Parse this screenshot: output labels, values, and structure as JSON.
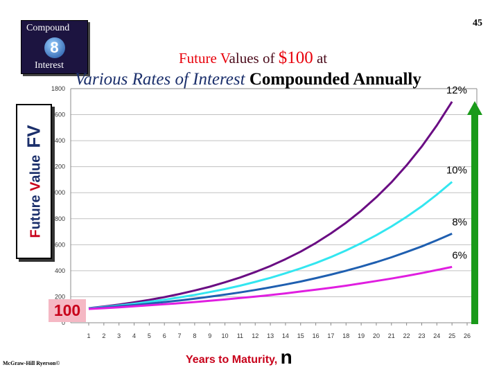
{
  "badge": {
    "top": "Compound",
    "number": "8",
    "bottom": "Interest"
  },
  "page_number": "45",
  "title_line1": {
    "prefix": "Future ",
    "v": "V",
    "mid": "alues of ",
    "amount": "$100",
    "suffix": " at"
  },
  "title_line2": {
    "italic": "Various Rates of Interest",
    "bold": " Compounded Annually"
  },
  "y_axis_label": {
    "f": "F",
    "uture": "uture ",
    "v": "V",
    "alue": "alue",
    "abbr": "FV"
  },
  "x_axis_label": {
    "text": "Years to Maturity, ",
    "n": "n"
  },
  "principal_callout": "100",
  "credit": "McGraw-Hill Ryerson©",
  "colors": {
    "r12": "#6a0d83",
    "r10": "#33e6f0",
    "r8": "#1f5fb0",
    "r6": "#e01ee0",
    "arrow": "#1a9a1a",
    "accent": "#e8000b"
  },
  "chart_data": {
    "type": "line",
    "title": "Future Values of $100 at Various Rates of Interest Compounded Annually",
    "xlabel": "Years to Maturity, n",
    "ylabel": "Future Value FV",
    "xlim": [
      1,
      26
    ],
    "ylim": [
      0,
      1800
    ],
    "y_ticks": [
      {
        "value": 0,
        "label": "0"
      },
      {
        "value": 200,
        "label": "200"
      },
      {
        "value": 400,
        "label": "400"
      },
      {
        "value": 600,
        "label": "600"
      },
      {
        "value": 800,
        "label": "800"
      },
      {
        "value": 1000,
        "label": "1000"
      },
      {
        "value": 1200,
        "label": "1200"
      },
      {
        "value": 1400,
        "label": "1400"
      },
      {
        "value": 1600,
        "label": "1600"
      },
      {
        "value": 1800,
        "label": "1800"
      }
    ],
    "x_ticks": [
      "1",
      "2",
      "3",
      "4",
      "5",
      "6",
      "7",
      "8",
      "9",
      "10",
      "11",
      "12",
      "13",
      "14",
      "15",
      "16",
      "17",
      "18",
      "19",
      "20",
      "21",
      "22",
      "23",
      "24",
      "25",
      "26"
    ],
    "grid": true,
    "series": [
      {
        "name": "12%",
        "x": [
          1,
          2,
          3,
          4,
          5,
          6,
          7,
          8,
          9,
          10,
          11,
          12,
          13,
          14,
          15,
          16,
          17,
          18,
          19,
          20,
          21,
          22,
          23,
          24,
          25
        ],
        "values": [
          112,
          125,
          140,
          157,
          176,
          197,
          221,
          248,
          277,
          311,
          348,
          390,
          436,
          489,
          547,
          613,
          687,
          769,
          861,
          965,
          1080,
          1210,
          1355,
          1518,
          1700
        ]
      },
      {
        "name": "10%",
        "x": [
          1,
          2,
          3,
          4,
          5,
          6,
          7,
          8,
          9,
          10,
          11,
          12,
          13,
          14,
          15,
          16,
          17,
          18,
          19,
          20,
          21,
          22,
          23,
          24,
          25
        ],
        "values": [
          110,
          121,
          133,
          146,
          161,
          177,
          195,
          214,
          236,
          259,
          285,
          314,
          345,
          380,
          418,
          459,
          505,
          556,
          612,
          673,
          740,
          814,
          895,
          985,
          1083
        ]
      },
      {
        "name": "8%",
        "x": [
          1,
          2,
          3,
          4,
          5,
          6,
          7,
          8,
          9,
          10,
          11,
          12,
          13,
          14,
          15,
          16,
          17,
          18,
          19,
          20,
          21,
          22,
          23,
          24,
          25
        ],
        "values": [
          108,
          117,
          126,
          136,
          147,
          159,
          171,
          185,
          200,
          216,
          233,
          252,
          272,
          294,
          317,
          343,
          370,
          400,
          432,
          466,
          503,
          544,
          587,
          634,
          685
        ]
      },
      {
        "name": "6%",
        "x": [
          1,
          2,
          3,
          4,
          5,
          6,
          7,
          8,
          9,
          10,
          11,
          12,
          13,
          14,
          15,
          16,
          17,
          18,
          19,
          20,
          21,
          22,
          23,
          24,
          25
        ],
        "values": [
          106,
          112,
          119,
          126,
          134,
          142,
          150,
          159,
          169,
          179,
          190,
          201,
          213,
          226,
          240,
          254,
          269,
          285,
          303,
          321,
          340,
          360,
          382,
          405,
          429
        ]
      }
    ]
  }
}
